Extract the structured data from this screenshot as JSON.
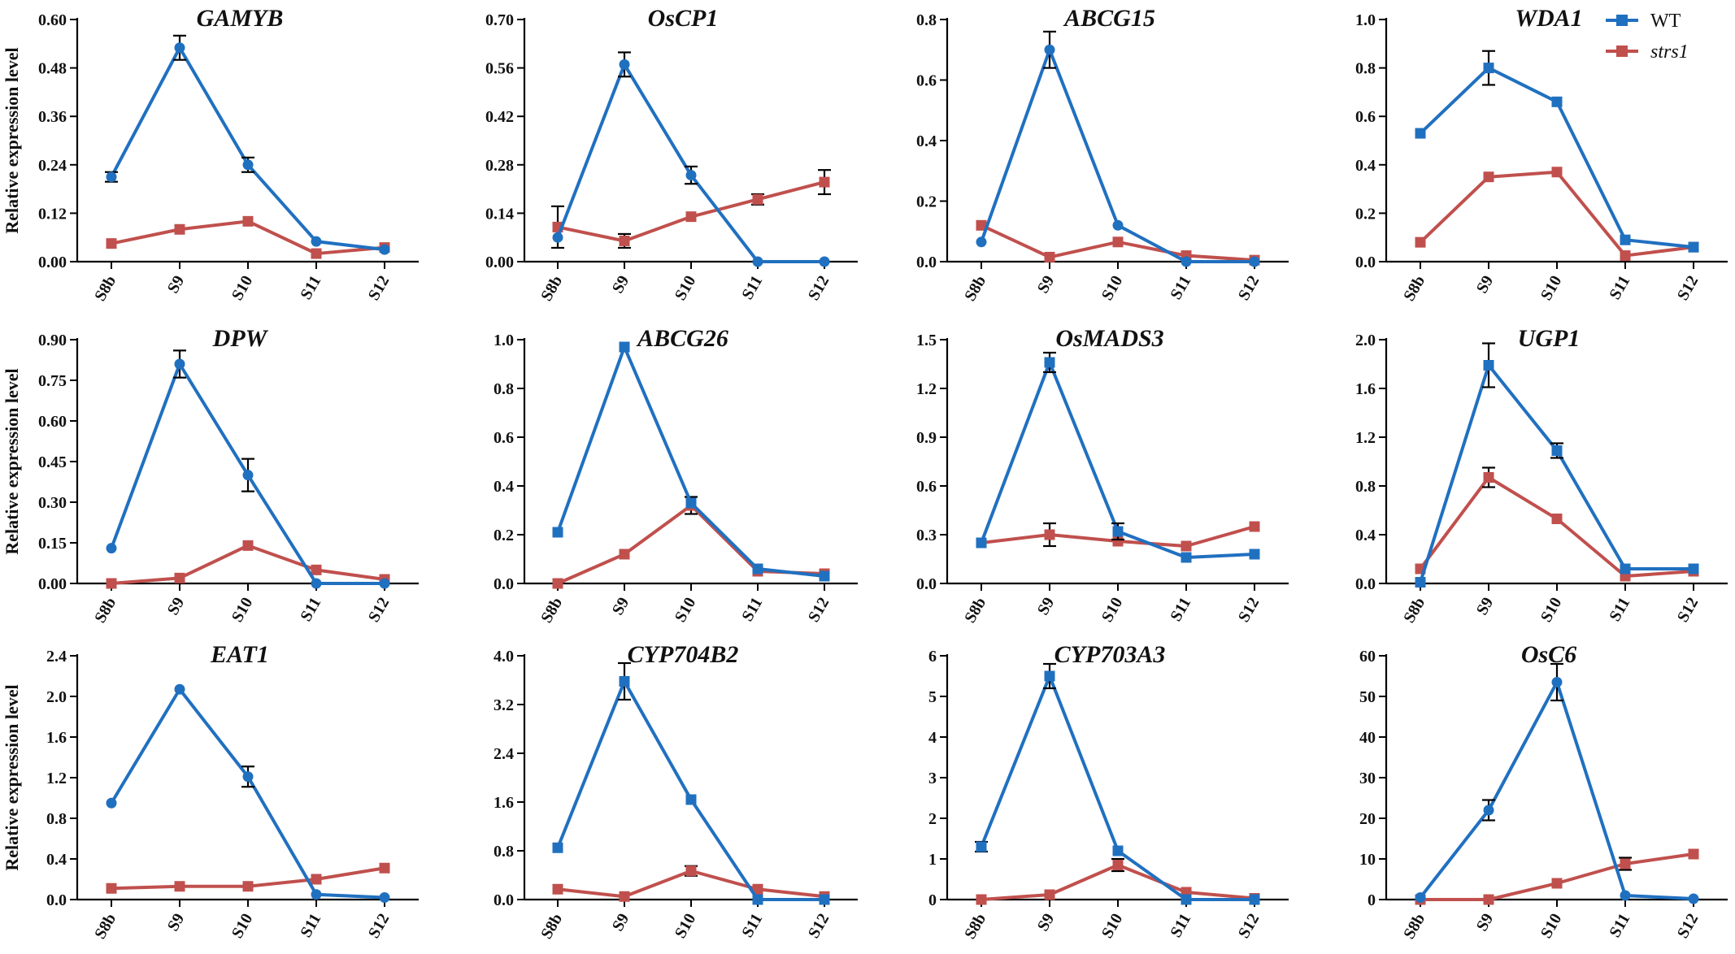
{
  "figure": {
    "ylabel": "Relative expression level",
    "colors": {
      "WT": "#2070C0",
      "strs1": "#C0504D"
    }
  },
  "legend": [
    {
      "name": "WT",
      "color": "#2070C0",
      "marker": "square",
      "italic": false
    },
    {
      "name": "strs1",
      "color": "#C0504D",
      "marker": "square",
      "italic": true
    }
  ],
  "chart_data": [
    {
      "type": "line",
      "title": "GAMYB",
      "categories": [
        "S8b",
        "S9",
        "S10",
        "S11",
        "S12"
      ],
      "ylim": [
        0,
        0.6
      ],
      "yticks": [
        "0.00",
        "0.12",
        "0.24",
        "0.36",
        "0.48",
        "0.60"
      ],
      "series": [
        {
          "name": "WT",
          "values": [
            0.21,
            0.53,
            0.24,
            0.05,
            0.03
          ],
          "errors": [
            0.012,
            0.03,
            0.018,
            0,
            0
          ],
          "marker": "circle"
        },
        {
          "name": "strs1",
          "values": [
            0.045,
            0.08,
            0.1,
            0.02,
            0.035
          ],
          "errors": [
            0,
            0,
            0,
            0,
            0
          ],
          "marker": "square"
        }
      ]
    },
    {
      "type": "line",
      "title": "OsCP1",
      "categories": [
        "S8b",
        "S9",
        "S10",
        "S11",
        "S12"
      ],
      "ylim": [
        0,
        0.7
      ],
      "yticks": [
        "0.00",
        "0.14",
        "0.28",
        "0.42",
        "0.56",
        "0.70"
      ],
      "series": [
        {
          "name": "WT",
          "values": [
            0.07,
            0.57,
            0.25,
            0.0,
            0.0
          ],
          "errors": [
            0,
            0.035,
            0.025,
            0,
            0
          ],
          "marker": "circle"
        },
        {
          "name": "strs1",
          "values": [
            0.1,
            0.06,
            0.13,
            0.18,
            0.23
          ],
          "errors": [
            0.06,
            0.02,
            0,
            0.015,
            0.035
          ],
          "marker": "square"
        }
      ]
    },
    {
      "type": "line",
      "title": "ABCG15",
      "categories": [
        "S8b",
        "S9",
        "S10",
        "S11",
        "S12"
      ],
      "ylim": [
        0,
        0.8
      ],
      "yticks": [
        "0.0",
        "0.2",
        "0.4",
        "0.6",
        "0.8"
      ],
      "series": [
        {
          "name": "WT",
          "values": [
            0.065,
            0.7,
            0.12,
            0.0,
            0.0
          ],
          "errors": [
            0,
            0.06,
            0,
            0,
            0
          ],
          "marker": "circle"
        },
        {
          "name": "strs1",
          "values": [
            0.12,
            0.015,
            0.065,
            0.02,
            0.005
          ],
          "errors": [
            0,
            0,
            0,
            0,
            0
          ],
          "marker": "square"
        }
      ]
    },
    {
      "type": "line",
      "title": "WDA1",
      "categories": [
        "S8b",
        "S9",
        "S10",
        "S11",
        "S12"
      ],
      "ylim": [
        0,
        1.0
      ],
      "yticks": [
        "0.0",
        "0.2",
        "0.4",
        "0.6",
        "0.8",
        "1.0"
      ],
      "series": [
        {
          "name": "WT",
          "values": [
            0.53,
            0.8,
            0.66,
            0.09,
            0.06
          ],
          "errors": [
            0,
            0.07,
            0,
            0,
            0
          ],
          "marker": "square"
        },
        {
          "name": "strs1",
          "values": [
            0.08,
            0.35,
            0.37,
            0.025,
            0.06
          ],
          "errors": [
            0,
            0,
            0,
            0,
            0
          ],
          "marker": "square"
        }
      ]
    },
    {
      "type": "line",
      "title": "DPW",
      "categories": [
        "S8b",
        "S9",
        "S10",
        "S11",
        "S12"
      ],
      "ylim": [
        0,
        0.9
      ],
      "yticks": [
        "0.00",
        "0.15",
        "0.30",
        "0.45",
        "0.60",
        "0.75",
        "0.90"
      ],
      "series": [
        {
          "name": "WT",
          "values": [
            0.13,
            0.81,
            0.4,
            0.0,
            0.0
          ],
          "errors": [
            0,
            0.05,
            0.06,
            0,
            0
          ],
          "marker": "circle"
        },
        {
          "name": "strs1",
          "values": [
            0.0,
            0.02,
            0.14,
            0.05,
            0.015
          ],
          "errors": [
            0,
            0,
            0,
            0,
            0
          ],
          "marker": "square"
        }
      ]
    },
    {
      "type": "line",
      "title": "ABCG26",
      "categories": [
        "S8b",
        "S9",
        "S10",
        "S11",
        "S12"
      ],
      "ylim": [
        0,
        1.0
      ],
      "yticks": [
        "0.0",
        "0.2",
        "0.4",
        "0.6",
        "0.8",
        "1.0"
      ],
      "series": [
        {
          "name": "WT",
          "values": [
            0.21,
            0.97,
            0.33,
            0.06,
            0.03
          ],
          "errors": [
            0,
            0,
            0,
            0,
            0
          ],
          "marker": "square"
        },
        {
          "name": "strs1",
          "values": [
            0.0,
            0.12,
            0.32,
            0.05,
            0.04
          ],
          "errors": [
            0,
            0,
            0.035,
            0,
            0
          ],
          "marker": "square"
        }
      ]
    },
    {
      "type": "line",
      "title": "OsMADS3",
      "categories": [
        "S8b",
        "S9",
        "S10",
        "S11",
        "S12"
      ],
      "ylim": [
        0,
        1.5
      ],
      "yticks": [
        "0.0",
        "0.3",
        "0.6",
        "0.9",
        "1.2",
        "1.5"
      ],
      "series": [
        {
          "name": "WT",
          "values": [
            0.25,
            1.36,
            0.32,
            0.16,
            0.18
          ],
          "errors": [
            0,
            0.06,
            0.05,
            0,
            0
          ],
          "marker": "square"
        },
        {
          "name": "strs1",
          "values": [
            0.25,
            0.3,
            0.26,
            0.23,
            0.35
          ],
          "errors": [
            0,
            0.07,
            0,
            0,
            0
          ],
          "marker": "square"
        }
      ]
    },
    {
      "type": "line",
      "title": "UGP1",
      "categories": [
        "S8b",
        "S9",
        "S10",
        "S11",
        "S12"
      ],
      "ylim": [
        0,
        2.0
      ],
      "yticks": [
        "0.0",
        "0.4",
        "0.8",
        "1.2",
        "1.6",
        "2.0"
      ],
      "series": [
        {
          "name": "WT",
          "values": [
            0.01,
            1.79,
            1.09,
            0.12,
            0.12
          ],
          "errors": [
            0,
            0.18,
            0.06,
            0,
            0
          ],
          "marker": "square"
        },
        {
          "name": "strs1",
          "values": [
            0.12,
            0.87,
            0.53,
            0.06,
            0.1
          ],
          "errors": [
            0,
            0.08,
            0,
            0,
            0
          ],
          "marker": "square"
        }
      ]
    },
    {
      "type": "line",
      "title": "EAT1",
      "categories": [
        "S8b",
        "S9",
        "S10",
        "S11",
        "S12"
      ],
      "ylim": [
        0,
        2.4
      ],
      "yticks": [
        "0.0",
        "0.4",
        "0.8",
        "1.2",
        "1.6",
        "2.0",
        "2.4"
      ],
      "series": [
        {
          "name": "WT",
          "values": [
            0.95,
            2.07,
            1.21,
            0.05,
            0.02
          ],
          "errors": [
            0,
            0,
            0.1,
            0,
            0
          ],
          "marker": "circle"
        },
        {
          "name": "strs1",
          "values": [
            0.11,
            0.13,
            0.13,
            0.2,
            0.31
          ],
          "errors": [
            0,
            0,
            0,
            0,
            0
          ],
          "marker": "square"
        }
      ]
    },
    {
      "type": "line",
      "title": "CYP704B2",
      "categories": [
        "S8b",
        "S9",
        "S10",
        "S11",
        "S12"
      ],
      "ylim": [
        0,
        4.0
      ],
      "yticks": [
        "0.0",
        "0.8",
        "1.6",
        "2.4",
        "3.2",
        "4.0"
      ],
      "series": [
        {
          "name": "WT",
          "values": [
            0.85,
            3.58,
            1.64,
            0.0,
            0.0
          ],
          "errors": [
            0,
            0.3,
            0,
            0,
            0
          ],
          "marker": "square"
        },
        {
          "name": "strs1",
          "values": [
            0.17,
            0.05,
            0.47,
            0.17,
            0.05
          ],
          "errors": [
            0,
            0,
            0.08,
            0,
            0
          ],
          "marker": "square"
        }
      ]
    },
    {
      "type": "line",
      "title": "CYP703A3",
      "categories": [
        "S8b",
        "S9",
        "S10",
        "S11",
        "S12"
      ],
      "ylim": [
        0,
        6
      ],
      "yticks": [
        "0",
        "1",
        "2",
        "3",
        "4",
        "5",
        "6"
      ],
      "series": [
        {
          "name": "WT",
          "values": [
            1.3,
            5.5,
            1.2,
            0.0,
            0.0
          ],
          "errors": [
            0.12,
            0.3,
            0,
            0,
            0
          ],
          "marker": "square"
        },
        {
          "name": "strs1",
          "values": [
            0.0,
            0.12,
            0.85,
            0.18,
            0.03
          ],
          "errors": [
            0,
            0,
            0.15,
            0,
            0
          ],
          "marker": "square"
        }
      ]
    },
    {
      "type": "line",
      "title": "OsC6",
      "categories": [
        "S8b",
        "S9",
        "S10",
        "S11",
        "S12"
      ],
      "ylim": [
        0,
        60
      ],
      "yticks": [
        "0",
        "10",
        "20",
        "30",
        "40",
        "50",
        "60"
      ],
      "series": [
        {
          "name": "WT",
          "values": [
            0.5,
            22.0,
            53.5,
            1.0,
            0.2
          ],
          "errors": [
            0,
            2.5,
            4.5,
            0,
            0
          ],
          "marker": "circle"
        },
        {
          "name": "strs1",
          "values": [
            0.0,
            0.0,
            4.0,
            8.8,
            11.2
          ],
          "errors": [
            0,
            0,
            0,
            1.5,
            0
          ],
          "marker": "square"
        }
      ]
    }
  ]
}
